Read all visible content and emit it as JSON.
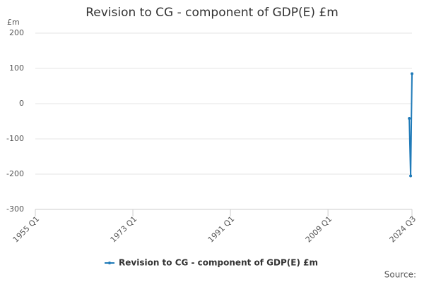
{
  "chart_data": {
    "type": "line",
    "title": "Revision to CG - component of GDP(E) £m",
    "y_label": "£m",
    "source": "Source:",
    "x": [
      2024,
      2024.25,
      2024.5
    ],
    "series": [
      {
        "name": "Revision to CG - component of GDP(E) £m",
        "color": "#1f7ab8",
        "values": [
          -42,
          -205,
          85
        ]
      }
    ],
    "xlim": [
      1955,
      2024.5
    ],
    "xticks": [
      {
        "value": 1955,
        "label": "1955 Q1"
      },
      {
        "value": 1973,
        "label": "1973 Q1"
      },
      {
        "value": 1991,
        "label": "1991 Q1"
      },
      {
        "value": 2009,
        "label": "2009 Q1"
      },
      {
        "value": 2024.5,
        "label": "2024 Q3"
      }
    ],
    "ylim": [
      -300,
      200
    ],
    "yticks": [
      -300,
      -200,
      -100,
      0,
      100,
      200
    ],
    "grid": true,
    "legend": "bottom"
  }
}
